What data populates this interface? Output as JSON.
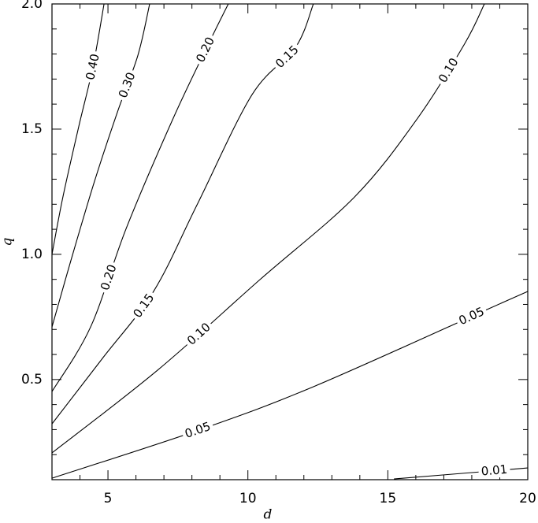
{
  "chart_data": {
    "type": "contour",
    "xlabel": "d",
    "ylabel": "q",
    "xlim": [
      3,
      20
    ],
    "ylim": [
      0.1,
      2.0
    ],
    "xticks": [
      5,
      10,
      15,
      20
    ],
    "yticks": [
      {
        "value": 0.5,
        "label": "0.5"
      },
      {
        "value": 1.0,
        "label": "1.0"
      },
      {
        "value": 1.5,
        "label": "1.5"
      },
      {
        "value": 2.0,
        "label": "2.0"
      }
    ],
    "xminorticks": [
      4,
      6,
      7,
      8,
      9,
      11,
      12,
      13,
      14,
      16,
      17,
      18,
      19
    ],
    "yminorticks": [
      0.2,
      0.3,
      0.4,
      0.6,
      0.7,
      0.8,
      0.9,
      1.1,
      1.2,
      1.3,
      1.4,
      1.6,
      1.7,
      1.8,
      1.9
    ],
    "color": "#000000",
    "series": [
      {
        "labels": [
          "0.40"
        ],
        "x": [
          3,
          3.39,
          3.96,
          4.46,
          4.86
        ],
        "values": [
          1.0,
          1.229,
          1.512,
          1.747,
          2.0
        ]
      },
      {
        "labels": [
          "0.30"
        ],
        "x": [
          3,
          3.68,
          4.52,
          5.36,
          6.07,
          6.49
        ],
        "values": [
          0.71,
          0.977,
          1.292,
          1.575,
          1.795,
          2.0
        ]
      },
      {
        "labels": [
          "0.20",
          "0.20"
        ],
        "x": [
          3,
          4.38,
          5.65,
          7.33,
          8.6,
          9.3
        ],
        "values": [
          0.452,
          0.71,
          1.103,
          1.543,
          1.842,
          2.0
        ]
      },
      {
        "labels": [
          "0.15",
          "0.15"
        ],
        "x": [
          3,
          4.8,
          6.63,
          8.18,
          10.15,
          11.7,
          12.34
        ],
        "values": [
          0.323,
          0.584,
          0.852,
          1.197,
          1.638,
          1.826,
          2.0
        ]
      },
      {
        "labels": [
          "0.10",
          "0.10"
        ],
        "x": [
          3,
          6.77,
          10.43,
          13.81,
          16.06,
          17.75,
          18.45
        ],
        "values": [
          0.207,
          0.537,
          0.899,
          1.229,
          1.543,
          1.842,
          2.0
        ]
      },
      {
        "labels": [
          "0.05",
          "0.05"
        ],
        "x": [
          3,
          8.32,
          12.4,
          18.59,
          20
        ],
        "values": [
          0.106,
          0.301,
          0.474,
          0.782,
          0.852
        ]
      },
      {
        "labels": [
          "0.01"
        ],
        "x": [
          15.22,
          18.73,
          20
        ],
        "values": [
          0.103,
          0.135,
          0.147
        ]
      }
    ]
  }
}
